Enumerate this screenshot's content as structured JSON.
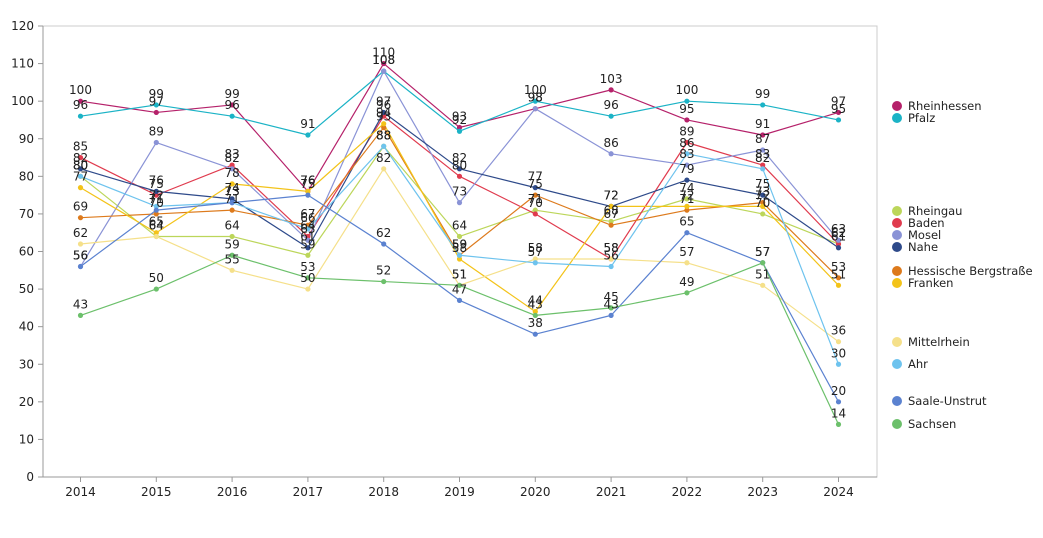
{
  "chart_data": {
    "type": "line",
    "title": "",
    "xlabel": "",
    "ylabel": "",
    "x": [
      "2014",
      "2015",
      "2016",
      "2017",
      "2018",
      "2019",
      "2020",
      "2021",
      "2022",
      "2023",
      "2024"
    ],
    "ylim": [
      0,
      120
    ],
    "yticks": [
      0,
      10,
      20,
      30,
      40,
      50,
      60,
      70,
      80,
      90,
      100,
      110,
      120
    ],
    "grid": false,
    "legend_position": "right",
    "series": [
      {
        "name": "Rheinhessen",
        "color": "#b5216a",
        "values": [
          100,
          97,
          99,
          76,
          110,
          93,
          98,
          103,
          95,
          91,
          97
        ]
      },
      {
        "name": "Pfalz",
        "color": "#1bb3c6",
        "values": [
          96,
          99,
          96,
          91,
          108,
          92,
          100,
          96,
          100,
          99,
          95
        ]
      },
      {
        "name": "Rheingau",
        "color": "#bcd65a",
        "values": [
          80,
          64,
          64,
          59,
          88,
          64,
          71,
          68,
          74,
          70,
          62
        ]
      },
      {
        "name": "Baden",
        "color": "#e03b4e",
        "values": [
          85,
          75,
          83,
          64,
          96,
          80,
          70,
          58,
          89,
          83,
          62
        ]
      },
      {
        "name": "Mosel",
        "color": "#8a93d6",
        "values": [
          56,
          89,
          82,
          63,
          108,
          73,
          98,
          86,
          83,
          87,
          63
        ]
      },
      {
        "name": "Nahe",
        "color": "#2e4a8a",
        "values": [
          82,
          76,
          74,
          61,
          97,
          82,
          77,
          72,
          79,
          75,
          61
        ]
      },
      {
        "name": "Hessische Bergstraße",
        "color": "#dd7a1c",
        "values": [
          69,
          70,
          71,
          67,
          93,
          59,
          75,
          67,
          71,
          73,
          53
        ]
      },
      {
        "name": "Franken",
        "color": "#f3c319",
        "values": [
          77,
          65,
          78,
          76,
          94,
          58,
          44,
          72,
          72,
          72,
          51
        ]
      },
      {
        "name": "Mittelrhein",
        "color": "#f5e08a",
        "values": [
          62,
          64,
          55,
          50,
          82,
          51,
          58,
          58,
          57,
          51,
          36
        ]
      },
      {
        "name": "Ahr",
        "color": "#6ec3ee",
        "values": [
          80,
          72,
          73,
          66,
          88,
          59,
          57,
          56,
          86,
          82,
          30
        ]
      },
      {
        "name": "Saale-Unstrut",
        "color": "#5b82d0",
        "values": [
          56,
          71,
          73,
          75,
          62,
          47,
          38,
          43,
          65,
          57,
          20
        ]
      },
      {
        "name": "Sachsen",
        "color": "#6cc06b",
        "values": [
          43,
          50,
          59,
          53,
          52,
          51,
          43,
          45,
          49,
          57,
          14
        ]
      }
    ]
  }
}
